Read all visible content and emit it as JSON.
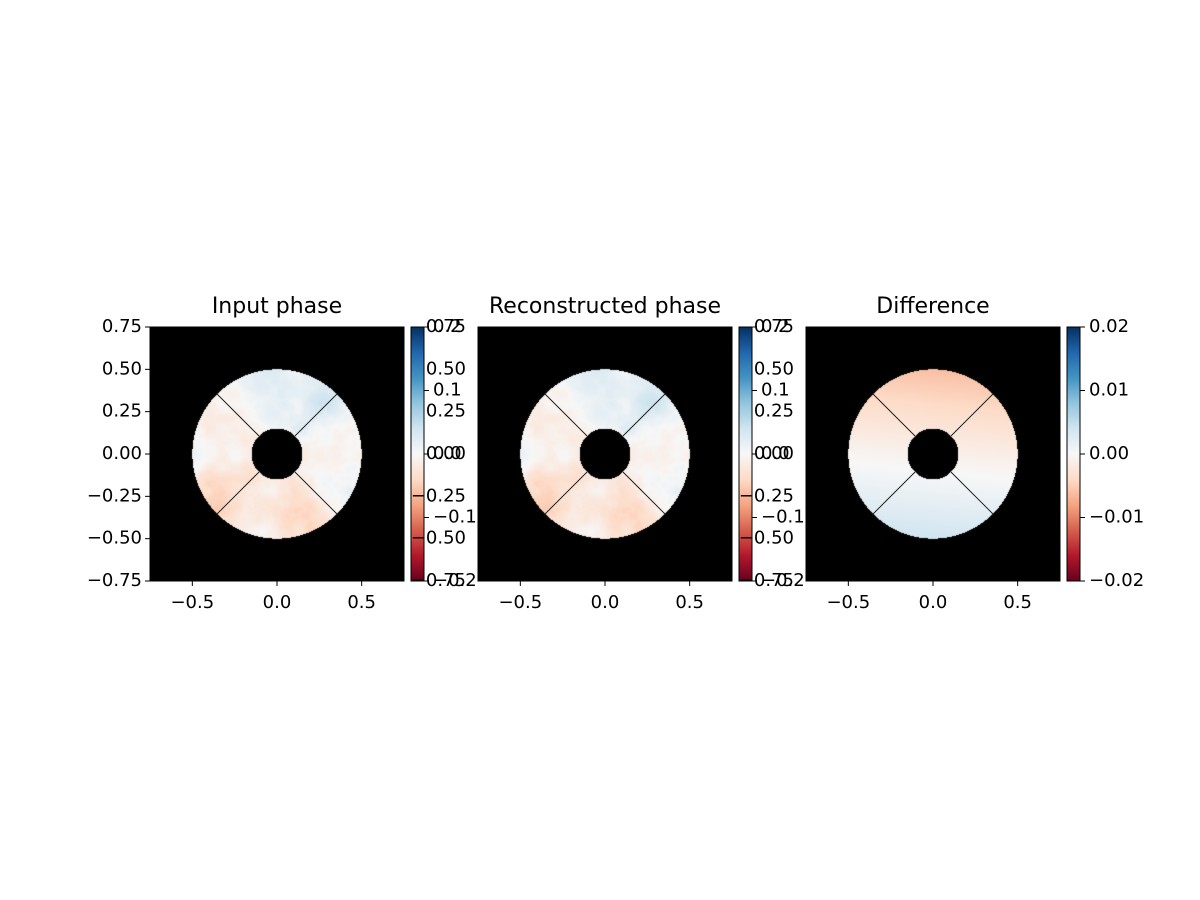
{
  "chart_data": [
    {
      "type": "heatmap",
      "title": "Input phase",
      "xlabel": "",
      "ylabel": "",
      "xlim": [
        -0.75,
        0.75
      ],
      "ylim": [
        -0.75,
        0.75
      ],
      "xticks": [
        "−0.5",
        "0.0",
        "0.5"
      ],
      "xtick_values": [
        -0.5,
        0.0,
        0.5
      ],
      "yticks": [
        "0.75",
        "0.50",
        "0.25",
        "0.00",
        "−0.25",
        "−0.50",
        "−0.75"
      ],
      "ytick_values": [
        0.75,
        0.5,
        0.25,
        0.0,
        -0.25,
        -0.5,
        -0.75
      ],
      "aperture": {
        "outer_radius": 0.5,
        "inner_radius": 0.15,
        "spider_angles_deg": [
          45,
          135,
          225,
          315
        ]
      },
      "colormap": "RdBu",
      "colorbar": {
        "range": [
          -0.2,
          0.2
        ],
        "ticks": [
          "0.2",
          "0.1",
          "0.0",
          "−0.1",
          "−0.2"
        ],
        "tick_values": [
          0.2,
          0.1,
          0.0,
          -0.1,
          -0.2
        ],
        "overlaid_ticks": [
          "0.75",
          "0.50",
          "0.25",
          "0.00",
          "−0.25",
          "−0.50",
          "−0.75"
        ]
      },
      "pattern": "turbulent phase; mostly light blue on upper half, reddish on left and lower regions"
    },
    {
      "type": "heatmap",
      "title": "Reconstructed phase",
      "xlabel": "",
      "ylabel": "",
      "xlim": [
        -0.75,
        0.75
      ],
      "ylim": [
        -0.75,
        0.75
      ],
      "xticks": [
        "−0.5",
        "0.0",
        "0.5"
      ],
      "xtick_values": [
        -0.5,
        0.0,
        0.5
      ],
      "aperture": {
        "outer_radius": 0.5,
        "inner_radius": 0.15,
        "spider_angles_deg": [
          45,
          135,
          225,
          315
        ]
      },
      "colormap": "RdBu",
      "colorbar": {
        "range": [
          -0.2,
          0.2
        ],
        "ticks": [
          "0.2",
          "0.1",
          "0.0",
          "−0.1",
          "−0.2"
        ],
        "tick_values": [
          0.2,
          0.1,
          0.0,
          -0.1,
          -0.2
        ],
        "overlaid_ticks": [
          "0.75",
          "0.50",
          "0.25",
          "0.00",
          "−0.25",
          "−0.50",
          "−0.75"
        ]
      },
      "pattern": "nearly identical to input phase"
    },
    {
      "type": "heatmap",
      "title": "Difference",
      "xlabel": "",
      "ylabel": "",
      "xlim": [
        -0.75,
        0.75
      ],
      "ylim": [
        -0.75,
        0.75
      ],
      "xticks": [
        "−0.5",
        "0.0",
        "0.5"
      ],
      "xtick_values": [
        -0.5,
        0.0,
        0.5
      ],
      "aperture": {
        "outer_radius": 0.5,
        "inner_radius": 0.15,
        "spider_angles_deg": [
          45,
          135,
          225,
          315
        ]
      },
      "colormap": "RdBu",
      "colorbar": {
        "range": [
          -0.02,
          0.02
        ],
        "ticks": [
          "0.02",
          "0.01",
          "0.00",
          "−0.01",
          "−0.02"
        ],
        "tick_values": [
          0.02,
          0.01,
          0.0,
          -0.01,
          -0.02
        ]
      },
      "pattern": "smooth vertical gradient: about -0.006 at top, about +0.004 at bottom"
    }
  ]
}
